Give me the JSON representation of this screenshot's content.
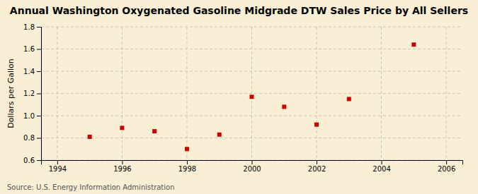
{
  "chart_data": {
    "type": "scatter",
    "title": "Annual Washington Oxygenated Gasoline Midgrade DTW Sales Price by All Sellers",
    "ylabel": "Dollars per Gallon",
    "annotations": [
      "Source: U.S. Energy Information Administration"
    ],
    "x": [
      1995,
      1996,
      1997,
      1998,
      1999,
      2000,
      2001,
      2002,
      2003,
      2005
    ],
    "y": [
      0.81,
      0.89,
      0.86,
      0.7,
      0.83,
      1.17,
      1.08,
      0.92,
      1.15,
      1.64
    ],
    "xlim": [
      1993.5,
      2006.5
    ],
    "ylim": [
      0.6,
      1.8
    ],
    "xticks": [
      1994,
      1996,
      1998,
      2000,
      2002,
      2004,
      2006
    ],
    "yticks": [
      0.6,
      0.8,
      {
        "value": 1,
        "label": "1.0"
      },
      1.2,
      1.4,
      1.6,
      1.8
    ],
    "color": "#cc0000",
    "marker": "square",
    "grid": true
  }
}
